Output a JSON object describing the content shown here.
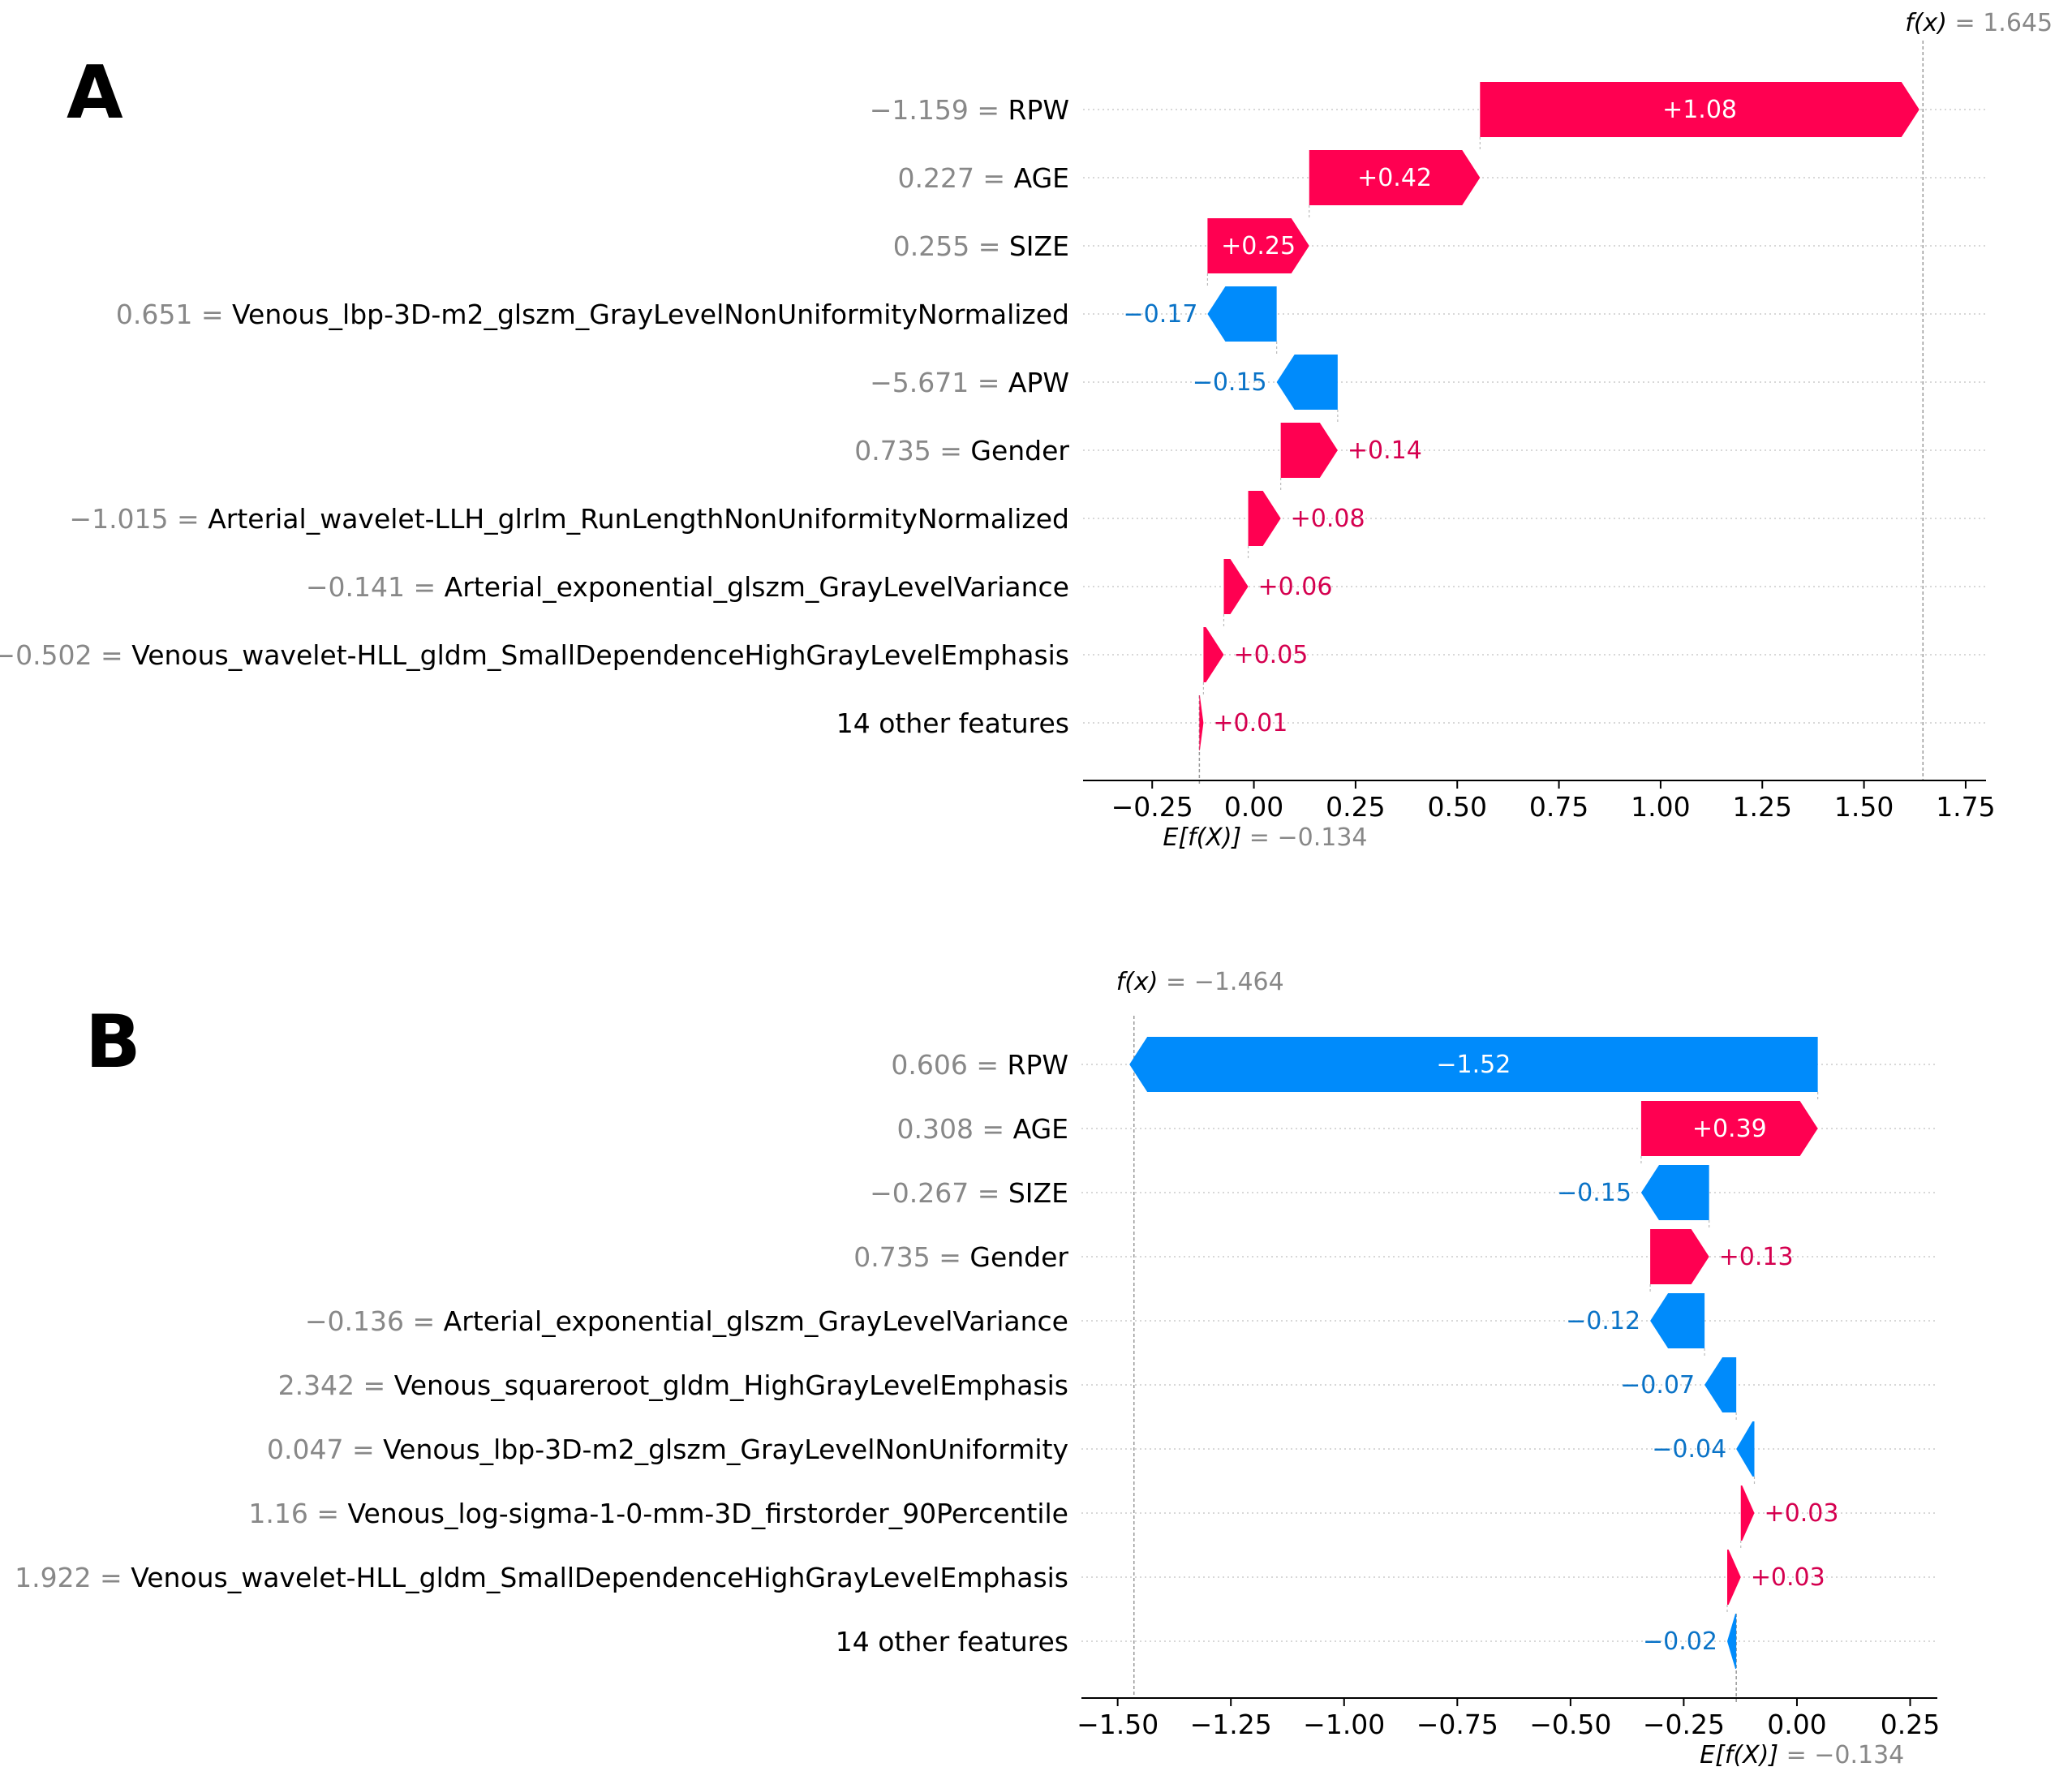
{
  "colors": {
    "positive": "#ff0051",
    "negative": "#008bfb",
    "positive_text": "#d5004f",
    "negative_text": "#0a73c7",
    "muted": "#888888"
  },
  "chart_data": [
    {
      "type": "waterfall",
      "panel": "A",
      "base_label": "E[f(X)]",
      "base_value_text": "= −0.134",
      "base_value": -0.134,
      "output_label": "f(x)",
      "output_value_text": "= 1.645",
      "output_value": 1.645,
      "xlim": [
        -0.42,
        1.8
      ],
      "xticks": [
        -0.25,
        0.0,
        0.25,
        0.5,
        0.75,
        1.0,
        1.25,
        1.5,
        1.75
      ],
      "xtick_labels": [
        "−0.25",
        "0.00",
        "0.25",
        "0.50",
        "0.75",
        "1.00",
        "1.25",
        "1.50",
        "1.75"
      ],
      "features": [
        {
          "value": "−1.159 =",
          "name": "RPW",
          "shap": 1.08,
          "label": "+1.08"
        },
        {
          "value": "0.227 =",
          "name": "AGE",
          "shap": 0.42,
          "label": "+0.42"
        },
        {
          "value": "0.255 =",
          "name": "SIZE",
          "shap": 0.25,
          "label": "+0.25"
        },
        {
          "value": "0.651 =",
          "name": "Venous_lbp-3D-m2_glszm_GrayLevelNonUniformityNormalized",
          "shap": -0.17,
          "label": "−0.17"
        },
        {
          "value": "−5.671 =",
          "name": "APW",
          "shap": -0.15,
          "label": "−0.15"
        },
        {
          "value": "0.735 =",
          "name": "Gender",
          "shap": 0.14,
          "label": "+0.14"
        },
        {
          "value": "−1.015 =",
          "name": "Arterial_wavelet-LLH_glrlm_RunLengthNonUniformityNormalized",
          "shap": 0.08,
          "label": "+0.08"
        },
        {
          "value": "−0.141 =",
          "name": "Arterial_exponential_glszm_GrayLevelVariance",
          "shap": 0.06,
          "label": "+0.06"
        },
        {
          "value": "−0.502 =",
          "name": "Venous_wavelet-HLL_gldm_SmallDependenceHighGrayLevelEmphasis",
          "shap": 0.05,
          "label": "+0.05"
        },
        {
          "value": "",
          "name": "14 other features",
          "shap": 0.01,
          "label": "+0.01"
        }
      ]
    },
    {
      "type": "waterfall",
      "panel": "B",
      "base_label": "E[f(X)]",
      "base_value_text": "= −0.134",
      "base_value": -0.134,
      "output_label": "f(x)",
      "output_value_text": "= −1.464",
      "output_value": -1.464,
      "xlim": [
        -1.58,
        0.31
      ],
      "xticks": [
        -1.5,
        -1.25,
        -1.0,
        -0.75,
        -0.5,
        -0.25,
        0.0,
        0.25
      ],
      "xtick_labels": [
        "−1.50",
        "−1.25",
        "−1.00",
        "−0.75",
        "−0.50",
        "−0.25",
        "0.00",
        "0.25"
      ],
      "features": [
        {
          "value": "0.606 =",
          "name": "RPW",
          "shap": -1.52,
          "label": "−1.52"
        },
        {
          "value": "0.308 =",
          "name": "AGE",
          "shap": 0.39,
          "label": "+0.39"
        },
        {
          "value": "−0.267 =",
          "name": "SIZE",
          "shap": -0.15,
          "label": "−0.15"
        },
        {
          "value": "0.735 =",
          "name": "Gender",
          "shap": 0.13,
          "label": "+0.13"
        },
        {
          "value": "−0.136 =",
          "name": "Arterial_exponential_glszm_GrayLevelVariance",
          "shap": -0.12,
          "label": "−0.12"
        },
        {
          "value": "2.342 =",
          "name": "Venous_squareroot_gldm_HighGrayLevelEmphasis",
          "shap": -0.07,
          "label": "−0.07"
        },
        {
          "value": "0.047 =",
          "name": "Venous_lbp-3D-m2_glszm_GrayLevelNonUniformity",
          "shap": -0.04,
          "label": "−0.04"
        },
        {
          "value": "1.16 =",
          "name": "Venous_log-sigma-1-0-mm-3D_firstorder_90Percentile",
          "shap": 0.03,
          "label": "+0.03"
        },
        {
          "value": "1.922 =",
          "name": "Venous_wavelet-HLL_gldm_SmallDependenceHighGrayLevelEmphasis",
          "shap": 0.03,
          "label": "+0.03"
        },
        {
          "value": "",
          "name": "14 other features",
          "shap": -0.02,
          "label": "−0.02"
        }
      ]
    }
  ]
}
